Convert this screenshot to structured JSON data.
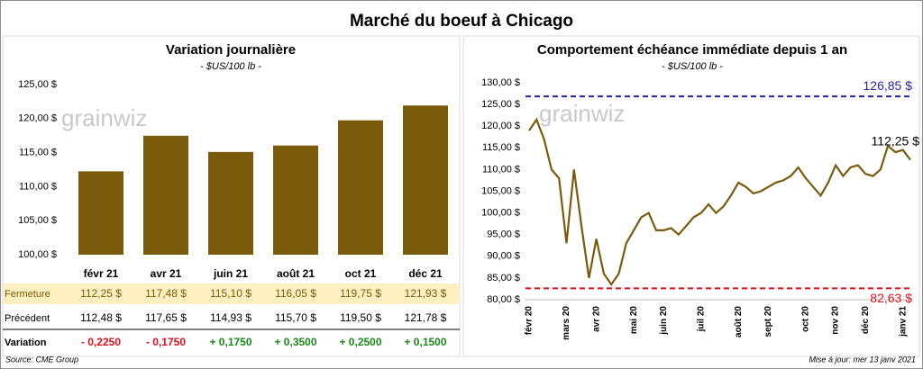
{
  "title": "Marché du boeuf à Chicago",
  "watermark": "grainwiz",
  "source": "Source: CME Group",
  "updated": "Mise à jour: mer 13 janv 2021",
  "chart_data": [
    {
      "type": "bar",
      "title": "Variation journalière",
      "subtitle": "- $US/100 lb -",
      "categories": [
        "févr 21",
        "avr 21",
        "juin 21",
        "août 21",
        "oct 21",
        "déc 21"
      ],
      "values": [
        112.25,
        117.48,
        115.1,
        116.05,
        119.75,
        121.93
      ],
      "value_labels": [
        "112,25 $",
        "117,48 $",
        "115,10 $",
        "116,05 $",
        "119,75 $",
        "121,93 $"
      ],
      "color": "#7a5b0c",
      "grid": false,
      "ylim": [
        100,
        125
      ],
      "yticks": [
        {
          "value": 100,
          "label": "100,00 $"
        },
        {
          "value": 105,
          "label": "105,00 $"
        },
        {
          "value": 110,
          "label": "110,00 $"
        },
        {
          "value": 115,
          "label": "115,00 $"
        },
        {
          "value": 120,
          "label": "120,00 $"
        },
        {
          "value": 125,
          "label": "125,00 $"
        }
      ]
    },
    {
      "type": "line",
      "title": "Comportement  échéance immédiate depuis 1 an",
      "subtitle": "- $US/100 lb -",
      "categories": [
        "févr 20",
        null,
        null,
        null,
        null,
        "mars 20",
        null,
        null,
        null,
        "avr 20",
        null,
        null,
        null,
        null,
        "mai 20",
        null,
        null,
        null,
        "juin 20",
        null,
        null,
        null,
        null,
        "juil 20",
        null,
        null,
        null,
        null,
        "août 20",
        null,
        null,
        null,
        "sept 20",
        null,
        null,
        null,
        null,
        "oct 20",
        null,
        null,
        null,
        "nov 20",
        null,
        null,
        null,
        "déc 20",
        null,
        null,
        null,
        null,
        "janv 21",
        null
      ],
      "series": [
        {
          "name": "Échéance immédiate",
          "color": "#7a5b0c",
          "values": [
            119,
            121.5,
            117,
            110,
            108,
            93,
            110,
            97,
            85,
            94,
            86,
            83.5,
            86,
            93,
            96,
            99,
            100,
            96,
            96,
            96.5,
            95,
            97,
            99,
            100,
            102,
            100,
            101.5,
            104,
            107,
            106,
            104.5,
            105,
            106,
            107,
            107.5,
            108.5,
            110.5,
            108,
            106,
            104,
            107,
            111,
            108.5,
            110.5,
            111,
            109,
            108.5,
            110,
            115.5,
            114,
            114.5,
            112.25
          ],
          "value_labels": [
            null,
            null,
            null,
            null,
            null,
            null,
            null,
            null,
            null,
            null,
            null,
            null,
            null,
            null,
            null,
            null,
            null,
            null,
            null,
            null,
            null,
            null,
            null,
            null,
            null,
            null,
            null,
            null,
            null,
            null,
            null,
            null,
            null,
            null,
            null,
            null,
            null,
            null,
            null,
            null,
            null,
            null,
            null,
            null,
            null,
            null,
            null,
            null,
            null,
            null,
            null,
            "112,25 $"
          ]
        }
      ],
      "reference_lines": [
        {
          "value": 126.85,
          "label": "126,85 $",
          "color": "#2b1fb0"
        },
        {
          "value": 82.63,
          "label": "82,63 $",
          "color": "#e0101a"
        }
      ],
      "grid": false,
      "ylim": [
        80,
        130
      ],
      "yticks": [
        {
          "value": 80,
          "label": "80,00 $"
        },
        {
          "value": 85,
          "label": "85,00 $"
        },
        {
          "value": 90,
          "label": "90,00 $"
        },
        {
          "value": 95,
          "label": "95,00 $"
        },
        {
          "value": 100,
          "label": "100,00 $"
        },
        {
          "value": 105,
          "label": "105,00 $"
        },
        {
          "value": 110,
          "label": "110,00 $"
        },
        {
          "value": 115,
          "label": "115,00 $"
        },
        {
          "value": 120,
          "label": "120,00 $"
        },
        {
          "value": 125,
          "label": "125,00 $"
        },
        {
          "value": 130,
          "label": "130,00 $"
        }
      ]
    }
  ],
  "table": {
    "rows": [
      {
        "label": "Fermeture"
      },
      {
        "label": "Précédent",
        "cells": [
          "112,48 $",
          "117,65 $",
          "114,93 $",
          "115,70 $",
          "119,50 $",
          "121,78 $"
        ]
      },
      {
        "label": "Variation",
        "cells": [
          "- 0,2250",
          "- 0,1750",
          "+ 0,1750",
          "+ 0,3500",
          "+ 0,2500",
          "+ 0,1500"
        ]
      }
    ]
  }
}
